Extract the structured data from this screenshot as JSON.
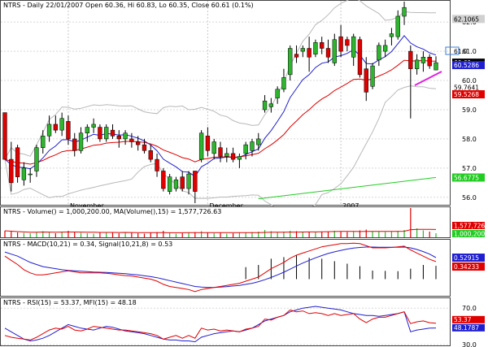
{
  "header": {
    "symbol": "NTRS",
    "text": "NTRS - Daily 22/01/2007 Open 60.36, Hi 60.83, Lo 60.35, Close 60.61 (0.1%)"
  },
  "subpanels": {
    "volume_label": "NTRS - Volume() = 1,000,200.00, MA(Volume(),15) = 1,577,726.63",
    "macd_label": "NTRS - MACD(10,21) = 0.34, Signal(10,21,8) = 0.53",
    "rsi_label": "NTRS - RSI(15) = 53.37, MFI(15) = 48.18"
  },
  "colors": {
    "up": "#2db52d",
    "down": "#e00000",
    "ma_short": "#1f1fd0",
    "ma_long": "#e00000",
    "ma_200": "#22cc22",
    "bollinger": "#b8b8b8",
    "annotation": "#e020e0"
  },
  "chart_data": [
    {
      "type": "candlestick",
      "title": "NTRS - Daily 22/01/2007 Open 60.36, Hi 60.83, Lo 60.35, Close 60.61 (0.1%)",
      "ylim": [
        55.8,
        62.7
      ],
      "yticks": [
        "56.0",
        "57.0",
        "58.0",
        "59.0",
        "60.0",
        "61.0",
        "62.0"
      ],
      "xticks": [
        {
          "label": "November",
          "index": 10
        },
        {
          "label": "December",
          "index": 32
        },
        {
          "label": "2007",
          "index": 53
        }
      ],
      "last_value_tags": [
        "62.1065",
        "61.0",
        "60.61",
        "60.5286",
        "59.7641",
        "59.5268",
        "56.6775"
      ],
      "candles": [
        [
          58.9,
          58.9,
          57.3,
          57.3
        ],
        [
          57.3,
          57.9,
          56.2,
          56.5
        ],
        [
          57.7,
          57.8,
          56.5,
          56.7
        ],
        [
          56.6,
          57.2,
          56.4,
          57.0
        ],
        [
          56.8,
          57.0,
          56.5,
          56.8
        ],
        [
          56.9,
          57.8,
          56.7,
          57.7
        ],
        [
          57.7,
          58.3,
          57.5,
          58.1
        ],
        [
          58.1,
          58.8,
          57.9,
          58.5
        ],
        [
          58.5,
          58.8,
          58.2,
          58.3
        ],
        [
          58.3,
          58.9,
          58.1,
          58.7
        ],
        [
          58.6,
          58.8,
          57.8,
          58.0
        ],
        [
          58.0,
          58.2,
          57.4,
          57.6
        ],
        [
          57.6,
          58.4,
          57.5,
          58.2
        ],
        [
          58.2,
          58.5,
          57.9,
          58.4
        ],
        [
          58.4,
          58.7,
          58.2,
          58.5
        ],
        [
          58.4,
          58.5,
          57.9,
          58.0
        ],
        [
          58.0,
          58.5,
          57.9,
          58.4
        ],
        [
          58.3,
          58.5,
          58.0,
          58.1
        ],
        [
          58.1,
          58.3,
          57.7,
          58.0
        ],
        [
          58.0,
          58.3,
          57.8,
          58.2
        ],
        [
          58.0,
          58.2,
          57.7,
          57.9
        ],
        [
          57.9,
          58.1,
          57.6,
          57.8
        ],
        [
          57.8,
          58.0,
          57.5,
          57.6
        ],
        [
          57.6,
          57.8,
          57.2,
          57.3
        ],
        [
          57.3,
          57.5,
          56.7,
          56.9
        ],
        [
          56.9,
          57.0,
          56.2,
          56.3
        ],
        [
          56.2,
          56.8,
          56.1,
          56.7
        ],
        [
          56.3,
          56.7,
          56.2,
          56.6
        ],
        [
          56.7,
          56.9,
          56.2,
          56.3
        ],
        [
          56.3,
          56.9,
          56.1,
          56.8
        ],
        [
          56.9,
          56.9,
          55.8,
          56.2
        ],
        [
          57.3,
          58.3,
          57.2,
          58.2
        ],
        [
          58.1,
          58.4,
          57.4,
          57.6
        ],
        [
          57.5,
          58.0,
          57.3,
          57.9
        ],
        [
          57.7,
          57.9,
          57.2,
          57.4
        ],
        [
          57.4,
          57.7,
          57.2,
          57.5
        ],
        [
          57.5,
          57.7,
          57.2,
          57.3
        ],
        [
          57.3,
          57.5,
          57.0,
          57.4
        ],
        [
          57.5,
          57.9,
          57.3,
          57.8
        ],
        [
          57.6,
          58.0,
          57.4,
          57.9
        ],
        [
          57.8,
          58.2,
          57.6,
          58.0
        ],
        [
          59.0,
          59.5,
          58.9,
          59.3
        ],
        [
          59.1,
          59.4,
          58.9,
          59.2
        ],
        [
          59.4,
          59.8,
          59.2,
          59.7
        ],
        [
          59.7,
          60.4,
          59.6,
          60.1
        ],
        [
          60.2,
          61.2,
          60.0,
          61.1
        ],
        [
          60.9,
          61.2,
          60.6,
          60.8
        ],
        [
          61.0,
          61.2,
          60.8,
          61.1
        ],
        [
          61.1,
          61.5,
          60.3,
          60.8
        ],
        [
          60.9,
          61.4,
          60.8,
          61.3
        ],
        [
          61.3,
          61.5,
          60.9,
          61.1
        ],
        [
          61.1,
          61.4,
          60.6,
          60.8
        ],
        [
          60.6,
          61.6,
          60.5,
          61.4
        ],
        [
          61.5,
          61.9,
          60.8,
          61.0
        ],
        [
          61.4,
          61.5,
          61.0,
          61.2
        ],
        [
          60.8,
          61.6,
          60.5,
          61.5
        ],
        [
          61.4,
          61.5,
          60.1,
          60.2
        ],
        [
          60.4,
          60.8,
          59.3,
          59.6
        ],
        [
          59.8,
          60.6,
          59.7,
          60.5
        ],
        [
          60.7,
          61.3,
          60.5,
          61.2
        ],
        [
          61.0,
          61.4,
          60.8,
          61.2
        ],
        [
          61.5,
          61.8,
          61.2,
          61.6
        ],
        [
          61.5,
          62.4,
          61.4,
          62.2
        ],
        [
          62.2,
          62.7,
          61.9,
          62.5
        ],
        [
          61.0,
          61.2,
          58.7,
          60.4
        ],
        [
          60.4,
          60.9,
          60.2,
          60.7
        ],
        [
          60.6,
          61.0,
          60.3,
          60.8
        ],
        [
          60.8,
          60.9,
          60.4,
          60.5
        ],
        [
          60.36,
          60.83,
          60.35,
          60.61
        ]
      ]
    },
    {
      "type": "bar",
      "title": "NTRS - Volume() = 1,000,200.00, MA(Volume(),15) = 1,577,726.63",
      "values": [
        1.6,
        1.4,
        1.2,
        1.1,
        1.0,
        1.3,
        1.5,
        1.2,
        1.0,
        1.4,
        1.6,
        1.2,
        1.1,
        1.0,
        0.9,
        1.1,
        1.3,
        1.2,
        1.0,
        1.1,
        1.2,
        1.0,
        0.9,
        1.1,
        1.3,
        1.6,
        1.1,
        0.9,
        1.0,
        1.2,
        1.3,
        1.5,
        1.2,
        1.0,
        1.1,
        0.9,
        1.0,
        1.1,
        1.2,
        1.3,
        1.4,
        1.8,
        1.5,
        1.3,
        1.4,
        1.6,
        1.5,
        1.3,
        1.4,
        1.2,
        1.3,
        1.4,
        1.6,
        1.5,
        1.3,
        1.4,
        1.7,
        1.9,
        1.4,
        1.5,
        1.3,
        1.4,
        1.6,
        1.8,
        7.2,
        2.2,
        1.7,
        1.4,
        1.0
      ],
      "last_value_tags": [
        "1,577,726",
        "1,000,200"
      ]
    },
    {
      "type": "line",
      "title": "NTRS - MACD(10,21) = 0.34, Signal(10,21,8) = 0.53",
      "ylim": [
        -1.3,
        1.35
      ],
      "series": [
        {
          "name": "MACD(10,21)",
          "values": [
            0.6,
            0.4,
            0.2,
            -0.05,
            -0.2,
            -0.3,
            -0.3,
            -0.25,
            -0.2,
            -0.15,
            -0.1,
            -0.15,
            -0.2,
            -0.2,
            -0.2,
            -0.2,
            -0.22,
            -0.25,
            -0.3,
            -0.33,
            -0.35,
            -0.4,
            -0.45,
            -0.5,
            -0.6,
            -0.75,
            -0.85,
            -0.9,
            -0.95,
            -1.0,
            -1.1,
            -1.0,
            -0.95,
            -0.9,
            -0.85,
            -0.8,
            -0.75,
            -0.7,
            -0.6,
            -0.5,
            -0.4,
            -0.2,
            0.0,
            0.15,
            0.3,
            0.5,
            0.65,
            0.75,
            0.85,
            0.95,
            1.05,
            1.1,
            1.15,
            1.2,
            1.2,
            1.22,
            1.2,
            1.1,
            1.0,
            1.0,
            1.0,
            1.02,
            1.05,
            1.08,
            0.9,
            0.75,
            0.6,
            0.45,
            0.34
          ]
        },
        {
          "name": "Signal(10,21,8)",
          "values": [
            0.8,
            0.7,
            0.6,
            0.45,
            0.3,
            0.2,
            0.1,
            0.05,
            0.0,
            -0.05,
            -0.08,
            -0.1,
            -0.12,
            -0.14,
            -0.16,
            -0.17,
            -0.18,
            -0.2,
            -0.22,
            -0.24,
            -0.27,
            -0.3,
            -0.34,
            -0.38,
            -0.43,
            -0.5,
            -0.57,
            -0.64,
            -0.71,
            -0.78,
            -0.85,
            -0.88,
            -0.9,
            -0.9,
            -0.88,
            -0.86,
            -0.83,
            -0.8,
            -0.75,
            -0.7,
            -0.62,
            -0.53,
            -0.42,
            -0.3,
            -0.17,
            -0.02,
            0.13,
            0.27,
            0.4,
            0.52,
            0.63,
            0.73,
            0.81,
            0.88,
            0.94,
            0.99,
            1.02,
            1.04,
            1.04,
            1.03,
            1.03,
            1.03,
            1.03,
            1.04,
            1.0,
            0.92,
            0.82,
            0.7,
            0.53
          ]
        }
      ],
      "histogram_from_index": 38,
      "last_value_tags": [
        "0.52915",
        "0.34233"
      ]
    },
    {
      "type": "line",
      "title": "NTRS - RSI(15) = 53.37, MFI(15) = 48.18",
      "ylim": [
        30,
        80
      ],
      "yticks": [
        "70.0",
        "30.0"
      ],
      "series": [
        {
          "name": "RSI(15)",
          "values": [
            40,
            38,
            37,
            36,
            35,
            38,
            42,
            46,
            48,
            47,
            50,
            46,
            45,
            47,
            50,
            49,
            48,
            47,
            46,
            46,
            45,
            44,
            43,
            42,
            40,
            36,
            38,
            40,
            37,
            40,
            37,
            48,
            46,
            47,
            45,
            46,
            45,
            44,
            47,
            48,
            50,
            58,
            57,
            60,
            62,
            68,
            66,
            67,
            64,
            65,
            64,
            62,
            64,
            62,
            63,
            64,
            58,
            54,
            58,
            60,
            60,
            62,
            64,
            66,
            53,
            55,
            56,
            54,
            53.37
          ]
        },
        {
          "name": "MFI(15)",
          "values": [
            48,
            44,
            40,
            36,
            34,
            35,
            37,
            40,
            44,
            48,
            52,
            50,
            48,
            47,
            46,
            48,
            50,
            49,
            47,
            45,
            44,
            43,
            42,
            40,
            38,
            36,
            35,
            35,
            34,
            34,
            33,
            38,
            40,
            42,
            43,
            44,
            45,
            44,
            46,
            48,
            52,
            56,
            58,
            60,
            62,
            66,
            68,
            70,
            71,
            72,
            71,
            70,
            69,
            68,
            66,
            64,
            63,
            62,
            62,
            61,
            62,
            63,
            64,
            66,
            44,
            46,
            47,
            48,
            48.18
          ]
        }
      ],
      "last_value_tags": [
        "53.37",
        "48.1787"
      ]
    }
  ]
}
